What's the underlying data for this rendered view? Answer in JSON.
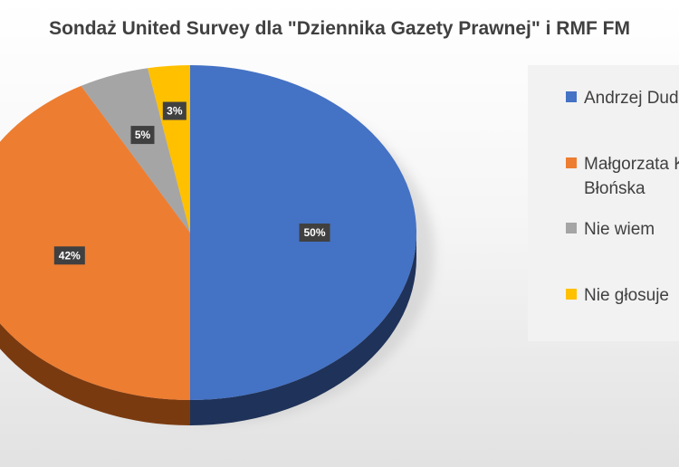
{
  "chart_data": {
    "type": "pie",
    "title": "Sondaż United Survey dla \"Dziennika Gazety Prawnej\" i RMF FM",
    "categories": [
      "Andrzej Duda",
      "Małgorzata Kidawa-Błońska",
      "Nie wiem",
      "Nie głosuje"
    ],
    "values": [
      50,
      42,
      5,
      3
    ],
    "data_labels": [
      "50%",
      "42%",
      "5%",
      "3%"
    ],
    "legend_labels": [
      [
        "Andrzej Duda"
      ],
      [
        "Małgorzata Kidawa-",
        "Błońska"
      ],
      [
        "Nie wiem"
      ],
      [
        "Nie głosuje"
      ]
    ],
    "colors": [
      "#4472C4",
      "#ED7D31",
      "#A5A5A5",
      "#FFC000"
    ],
    "side_colors": [
      "#1F3259",
      "#7A3A10",
      "#5A5A5A",
      "#8A6A00"
    ],
    "legend_position": "right",
    "style": "3d-pie"
  }
}
